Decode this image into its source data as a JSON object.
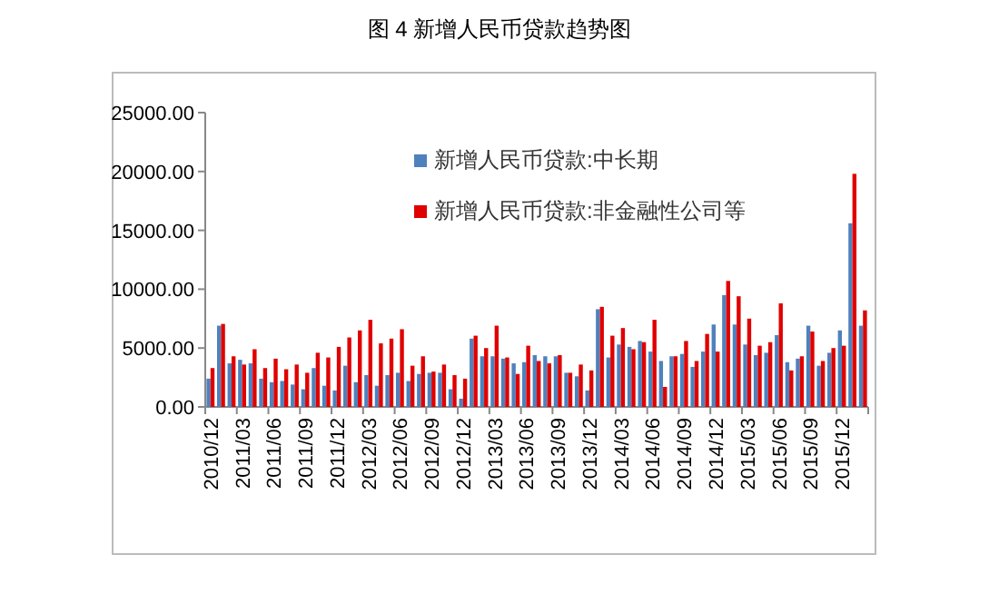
{
  "chart_data": {
    "type": "bar",
    "title": "图 4  新增人民币贷款趋势图",
    "categories": [
      "2010/12",
      null,
      null,
      "2011/03",
      null,
      null,
      "2011/06",
      null,
      null,
      "2011/09",
      null,
      null,
      "2011/12",
      null,
      null,
      "2012/03",
      null,
      null,
      "2012/06",
      null,
      null,
      "2012/09",
      null,
      null,
      "2012/12",
      null,
      null,
      "2013/03",
      null,
      null,
      "2013/06",
      null,
      null,
      "2013/09",
      null,
      null,
      "2013/12",
      null,
      null,
      "2014/03",
      null,
      null,
      "2014/06",
      null,
      null,
      "2014/09",
      null,
      null,
      "2014/12",
      null,
      null,
      "2015/03",
      null,
      null,
      "2015/06",
      null,
      null,
      "2015/09",
      null,
      null,
      "2015/12",
      null,
      null
    ],
    "series": [
      {
        "name": "新增人民币贷款:中长期",
        "color": "#4f81bd",
        "values": [
          2400,
          6900,
          3700,
          4000,
          3700,
          2400,
          2100,
          2200,
          1900,
          1500,
          3300,
          1800,
          1400,
          3500,
          2100,
          2700,
          1800,
          2700,
          2900,
          2200,
          2800,
          2900,
          2900,
          1500,
          700,
          5800,
          4300,
          4300,
          4100,
          3700,
          3800,
          4400,
          4300,
          4300,
          2900,
          2600,
          1400,
          8300,
          4200,
          5300,
          5100,
          5600,
          4700,
          3900,
          4300,
          4500,
          3400,
          4700,
          7000,
          9500,
          7000,
          5300,
          4400,
          4600,
          6100,
          3800,
          4100,
          6900,
          3500,
          4600,
          6500,
          15600,
          6900
        ]
      },
      {
        "name": "新增人民币贷款:非金融性公司等",
        "color": "#e00000",
        "values": [
          3300,
          7050,
          4300,
          3600,
          4900,
          3300,
          4100,
          3200,
          3600,
          2900,
          4600,
          4200,
          5100,
          5900,
          6500,
          7400,
          5400,
          5800,
          6600,
          3500,
          4300,
          3000,
          3600,
          2700,
          2400,
          6050,
          5000,
          6900,
          4200,
          2800,
          5200,
          3900,
          3700,
          4400,
          2900,
          3600,
          3100,
          8500,
          6050,
          6700,
          4900,
          5500,
          7400,
          1700,
          4300,
          5600,
          3900,
          6200,
          4700,
          10700,
          9400,
          7500,
          5200,
          5500,
          8800,
          3100,
          4300,
          6400,
          3900,
          5000,
          5200,
          19800,
          8200
        ]
      }
    ],
    "ylim": [
      0,
      25000
    ],
    "yticks": [
      {
        "value": 0,
        "label": "0.00"
      },
      {
        "value": 5000,
        "label": "5000.00"
      },
      {
        "value": 10000,
        "label": "10000.00"
      },
      {
        "value": 15000,
        "label": "15000.00"
      },
      {
        "value": 20000,
        "label": "20000.00"
      },
      {
        "value": 25000,
        "label": "25000.00"
      }
    ],
    "legend": "top"
  }
}
